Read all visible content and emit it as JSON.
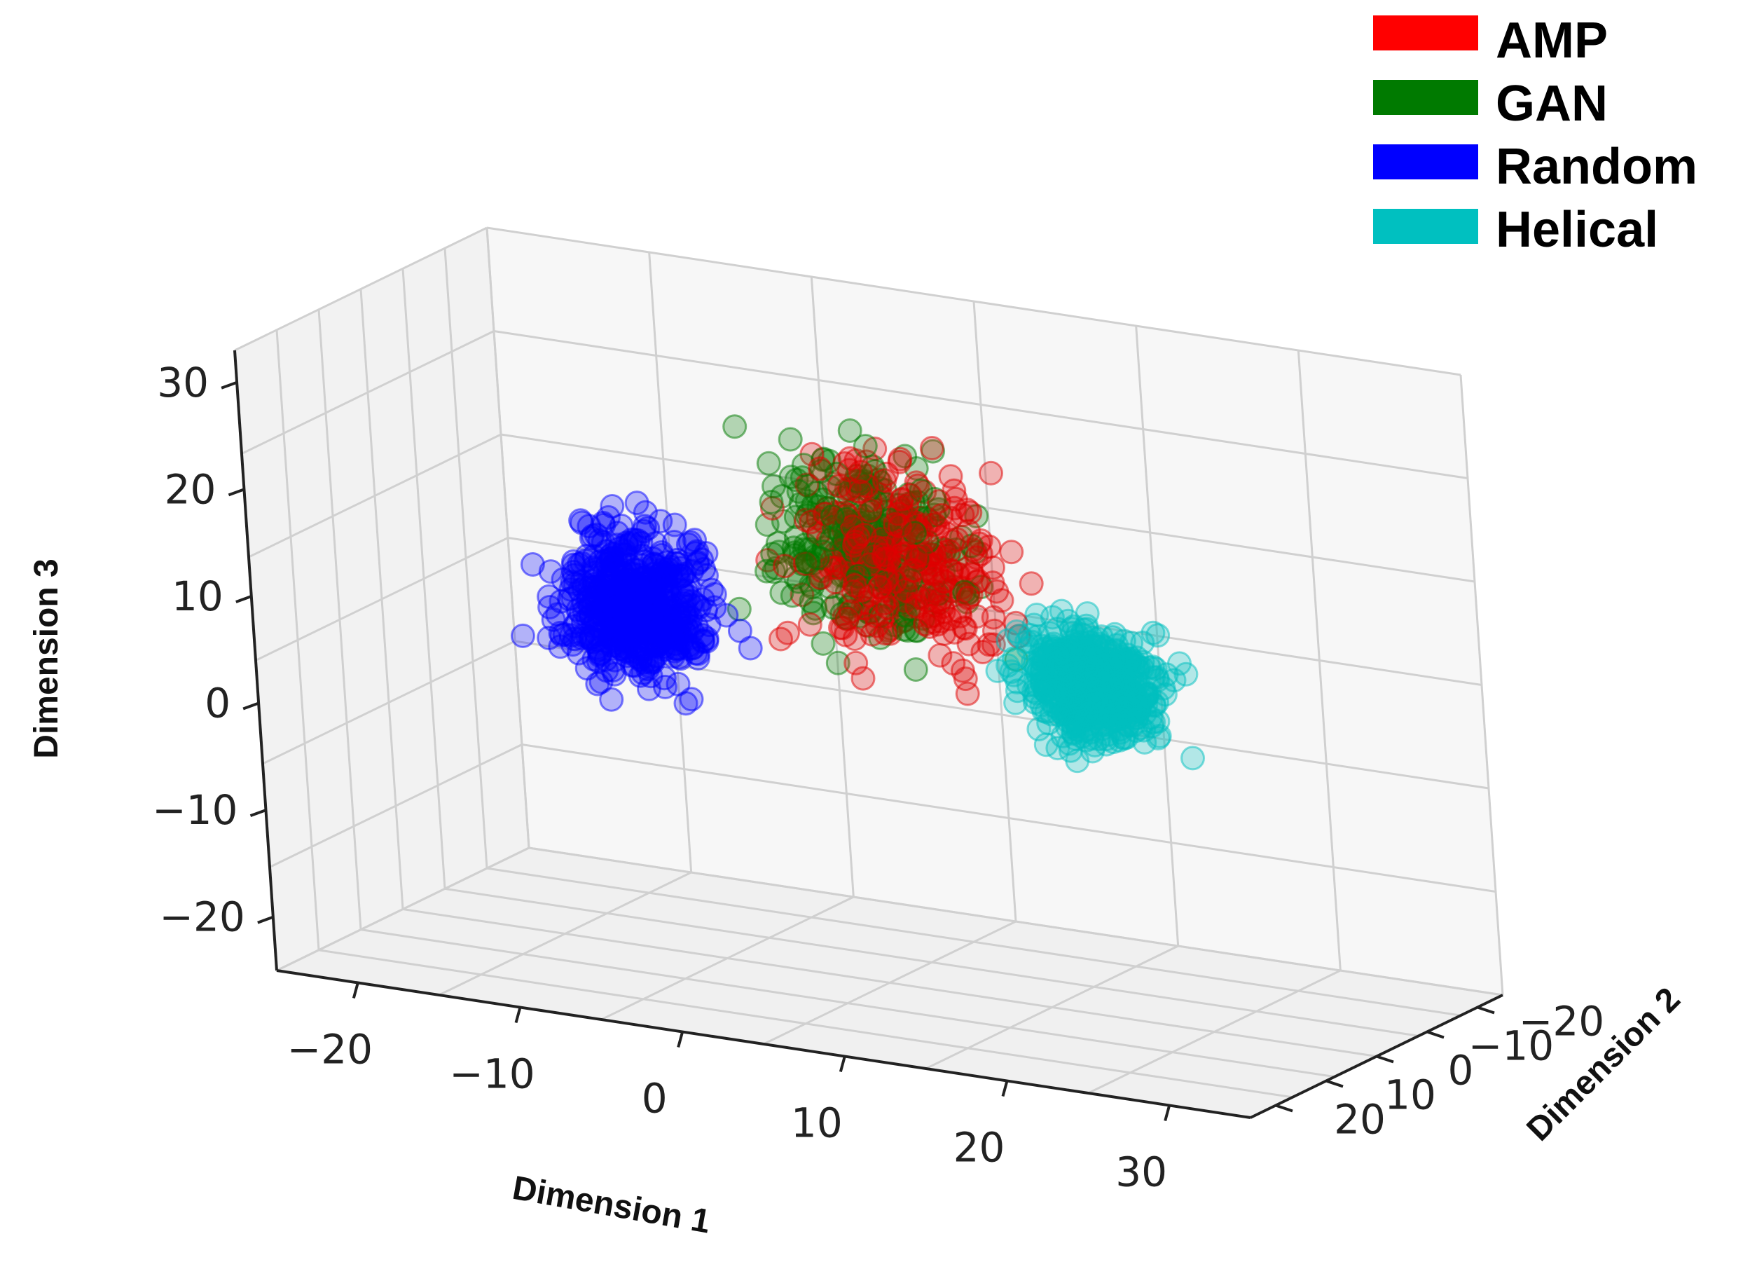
{
  "chart_data": {
    "type": "scatter",
    "projection": "3d",
    "grid": true,
    "legend_position": "top-right",
    "xlabel": "Dimension 1",
    "ylabel": "Dimension 2",
    "zlabel": "Dimension 3",
    "xlim": [
      -25,
      35
    ],
    "ylim": [
      -25,
      25
    ],
    "zlim": [
      -25,
      33
    ],
    "x_ticks": [
      "−20",
      "−10",
      "0",
      "10",
      "20",
      "30"
    ],
    "y_ticks": [
      "−20",
      "−10",
      "0",
      "10",
      "20"
    ],
    "z_ticks": [
      "−20",
      "−10",
      "0",
      "10",
      "20",
      "30"
    ],
    "series": [
      {
        "name": "AMP",
        "color": "#e00000",
        "center": [
          6,
          -4,
          14
        ],
        "spread": [
          9,
          9,
          12
        ],
        "count": 300
      },
      {
        "name": "GAN",
        "color": "#007a00",
        "center": [
          4,
          -5,
          15
        ],
        "spread": [
          9,
          8,
          12
        ],
        "count": 260
      },
      {
        "name": "Random",
        "color": "#0000ff",
        "center": [
          -8,
          3,
          8
        ],
        "spread": [
          6,
          7,
          10
        ],
        "count": 520
      },
      {
        "name": "Helical",
        "color": "#00bfbf",
        "center": [
          18,
          -3,
          5
        ],
        "spread": [
          6,
          6,
          7
        ],
        "count": 520
      }
    ]
  }
}
